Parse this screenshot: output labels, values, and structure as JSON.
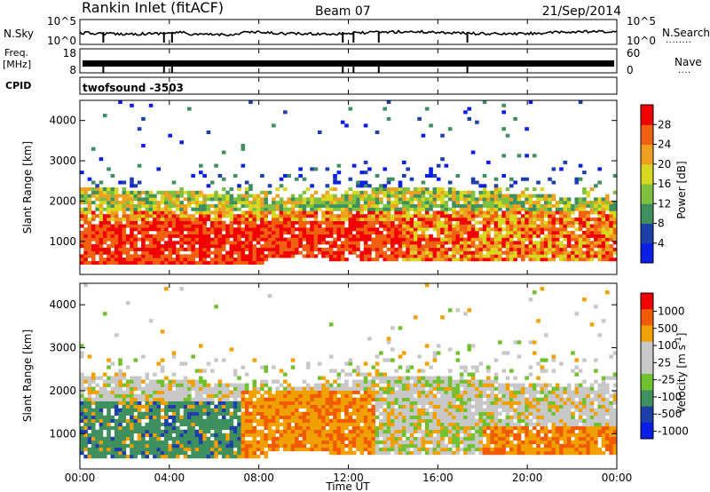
{
  "header": {
    "title": "Rankin Inlet (fitACF)",
    "beam": "Beam 07",
    "date": "21/Sep/2014"
  },
  "nsky_panel": {
    "label": "N.Sky",
    "left_ticks": [
      "10^5",
      "10^0"
    ],
    "right_ticks": [
      "10^5",
      "10^0"
    ],
    "right_label": "N.Search",
    "right_label_dots": "........"
  },
  "freq_panel": {
    "label_line1": "Freq.",
    "label_line2": "[MHz]",
    "left_ticks": [
      "18",
      "8"
    ],
    "right_ticks": [
      "60",
      "0"
    ],
    "right_label": "Nave",
    "right_label_dots": "...."
  },
  "cpid_panel": {
    "label": "CPID",
    "value": "twofsound -3503"
  },
  "x_axis": {
    "label": "Time UT",
    "ticks": [
      "00:00",
      "04:00",
      "08:00",
      "12:00",
      "16:00",
      "20:00",
      "00:00"
    ]
  },
  "colors": {
    "power_scale": [
      "#0a1ee6",
      "#1f3fa8",
      "#3f8f5f",
      "#7fc040",
      "#d8d820",
      "#f0a020",
      "#f06010",
      "#f00000"
    ],
    "velocity_scale": [
      "#f00000",
      "#f05a00",
      "#f0a000",
      "#c8c8c8",
      "#c8c8c8",
      "#70c030",
      "#3f8f5f",
      "#1f3fa8",
      "#0a1ee6"
    ]
  },
  "chart_data": [
    {
      "type": "heatmap",
      "panel": "power",
      "title": "",
      "xlabel": "",
      "ylabel": "Slant Range [km]",
      "xlim_hours_ut": [
        0,
        24
      ],
      "ylim": [
        180,
        4500
      ],
      "y_ticks": [
        "1000",
        "2000",
        "3000",
        "4000"
      ],
      "colorbar": {
        "label": "Power [dB]",
        "ticks": [
          "4",
          "8",
          "12",
          "16",
          "20",
          "24",
          "28"
        ],
        "range": [
          0,
          30
        ]
      }
    },
    {
      "type": "heatmap",
      "panel": "velocity",
      "title": "",
      "xlabel": "Time UT",
      "ylabel": "Slant Range [km]",
      "xlim_hours_ut": [
        0,
        24
      ],
      "ylim": [
        180,
        4500
      ],
      "y_ticks": [
        "1000",
        "2000",
        "3000",
        "4000"
      ],
      "colorbar": {
        "label": "Velocity [m s",
        "label_superscript": "-1",
        "label_close": "]",
        "ticks": [
          "1000",
          "500",
          "100",
          "25",
          "-25",
          "-100",
          "-500",
          "-1000"
        ]
      }
    }
  ]
}
